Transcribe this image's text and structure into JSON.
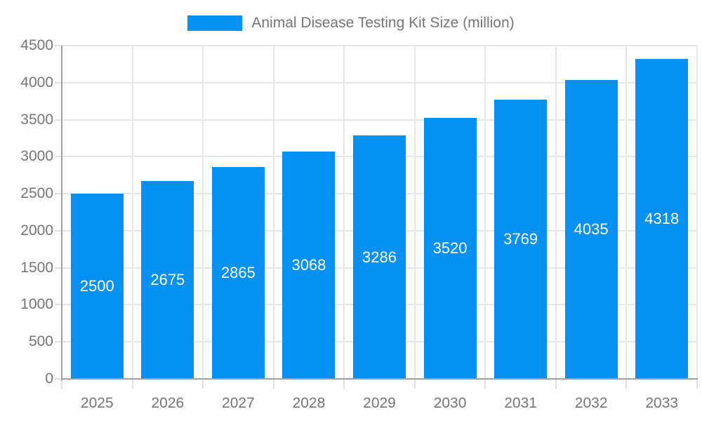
{
  "colors": {
    "bar": "#0690F2",
    "axis_line": "#9e9e9e",
    "gridline": "#e6e6e6",
    "tick": "#e0e0e0",
    "axis_text": "#757575",
    "bar_value_text": "#ffffff",
    "background": "#ffffff"
  },
  "legend": {
    "label": "Animal Disease Testing Kit Size (million)"
  },
  "chart_data": {
    "type": "bar",
    "title": "Animal Disease Testing Kit Size (million)",
    "categories": [
      "2025",
      "2026",
      "2027",
      "2028",
      "2029",
      "2030",
      "2031",
      "2032",
      "2033"
    ],
    "series": [
      {
        "name": "Animal Disease Testing Kit Size (million)",
        "values": [
          2500,
          2675,
          2865,
          3068,
          3286,
          3520,
          3769,
          4035,
          4318
        ]
      }
    ],
    "data_labels": [
      "2500",
      "2675",
      "2865",
      "3068",
      "3286",
      "3520",
      "3769",
      "4035",
      "4318"
    ],
    "xlabel": "",
    "ylabel": "",
    "ylim": [
      0,
      4500
    ],
    "y_ticks": [
      0,
      500,
      1000,
      1500,
      2000,
      2500,
      3000,
      3500,
      4000,
      4500
    ],
    "grid": true,
    "legend_position": "top-center",
    "bar_color": "#0690F2"
  }
}
